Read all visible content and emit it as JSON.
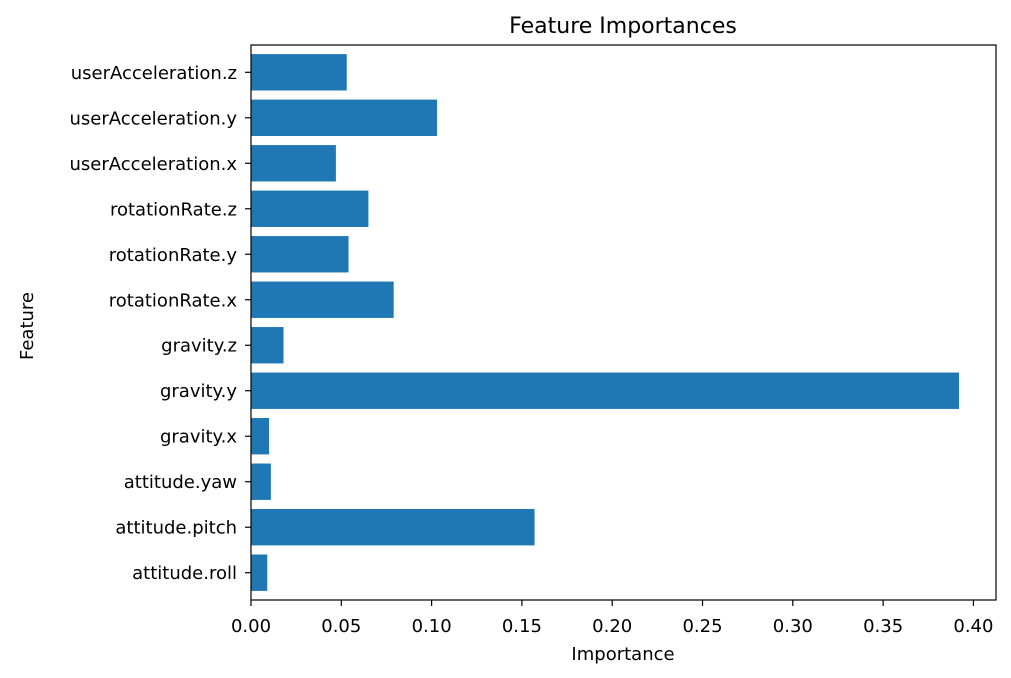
{
  "chart_data": {
    "type": "bar",
    "orientation": "horizontal",
    "title": "Feature Importances",
    "xlabel": "Importance",
    "ylabel": "Feature",
    "categories": [
      "attitude.roll",
      "attitude.pitch",
      "attitude.yaw",
      "gravity.x",
      "gravity.y",
      "gravity.z",
      "rotationRate.x",
      "rotationRate.y",
      "rotationRate.z",
      "userAcceleration.x",
      "userAcceleration.y",
      "userAcceleration.z"
    ],
    "values": [
      0.009,
      0.157,
      0.011,
      0.01,
      0.392,
      0.018,
      0.079,
      0.054,
      0.065,
      0.047,
      0.103,
      0.053
    ],
    "xlim": [
      0,
      0.4125
    ],
    "xticks": [
      0.0,
      0.05,
      0.1,
      0.15,
      0.2,
      0.25,
      0.3,
      0.35,
      0.4
    ],
    "xtick_labels": [
      "0.00",
      "0.05",
      "0.10",
      "0.15",
      "0.20",
      "0.25",
      "0.30",
      "0.35",
      "0.40"
    ],
    "bar_color": "#1f77b4",
    "grid": false,
    "legend": "none"
  }
}
